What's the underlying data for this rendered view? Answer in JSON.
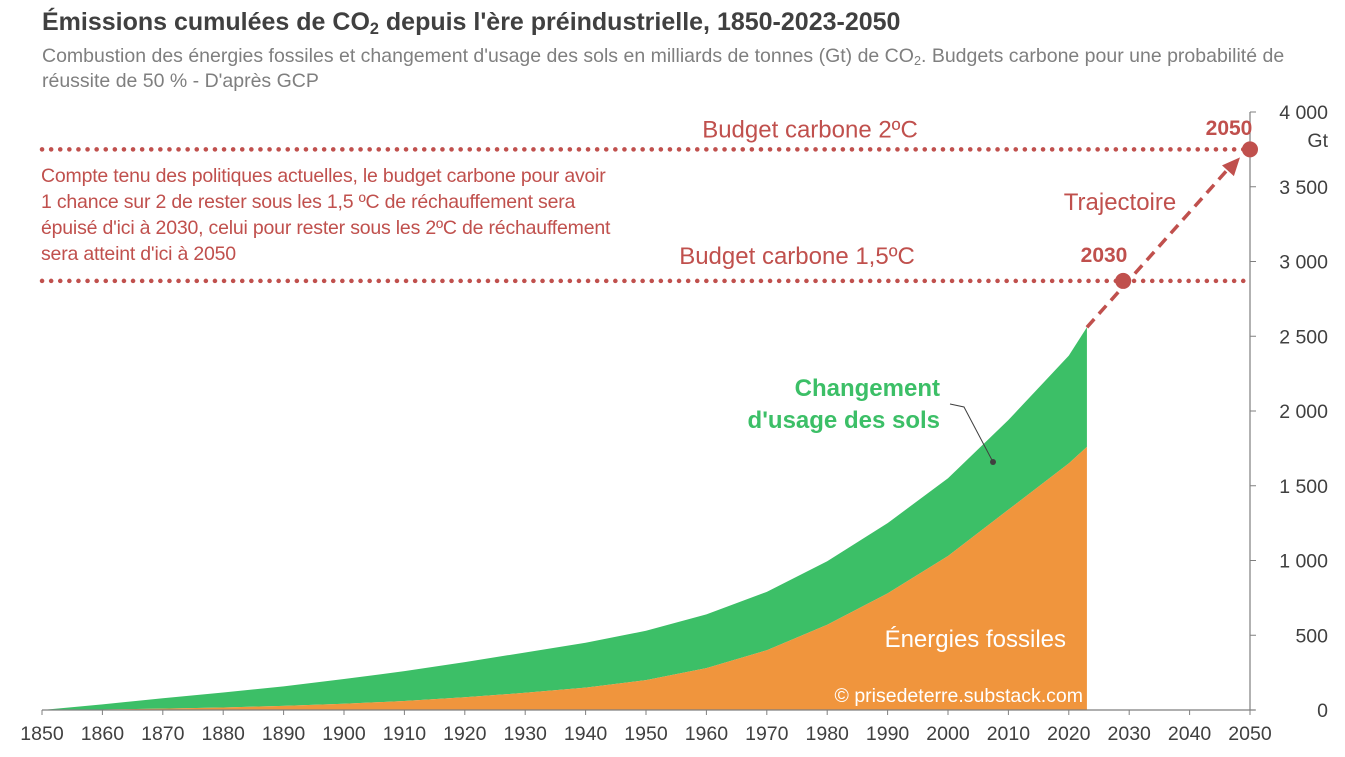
{
  "title_main": "Émissions cumulées de CO",
  "title_sub": "2",
  "title_rest": " depuis l'ère préindustrielle, 1850-2023-2050",
  "subtitle_main": "Combustion des énergies fossiles et changement d'usage des sols en milliards de tonnes (Gt) de CO",
  "subtitle_sub": "2",
  "subtitle_rest": ". Budgets carbone pour une probabilité de réussite de 50 % - D'après GCP",
  "colors": {
    "fossil": "#f0953d",
    "land": "#3cbf67",
    "budget": "#c0504d",
    "axis": "#7f7f7f",
    "text": "#404040"
  },
  "chart_data": {
    "type": "area",
    "stacked": true,
    "x": [
      1850,
      1860,
      1870,
      1880,
      1890,
      1900,
      1910,
      1920,
      1930,
      1940,
      1950,
      1960,
      1970,
      1980,
      1990,
      2000,
      2010,
      2020,
      2023
    ],
    "series": [
      {
        "name": "Énergies fossiles",
        "values": [
          0,
          3,
          9,
          17,
          28,
          42,
          60,
          85,
          115,
          150,
          200,
          280,
          400,
          570,
          780,
          1030,
          1340,
          1650,
          1760
        ]
      },
      {
        "name": "Changement d'usage des sols",
        "values": [
          0,
          35,
          70,
          100,
          130,
          165,
          200,
          235,
          270,
          300,
          330,
          360,
          390,
          425,
          470,
          520,
          600,
          720,
          800
        ]
      }
    ],
    "budget_lines": [
      {
        "label": "Budget carbone 2ºC",
        "value": 3750
      },
      {
        "label": "Budget carbone 1,5ºC",
        "value": 2870
      }
    ],
    "trajectory": {
      "label": "Trajectoire",
      "start": {
        "x": 2023,
        "y": 2560
      },
      "points": [
        {
          "x": 2029,
          "y": 2870,
          "label": "2030"
        },
        {
          "x": 2050,
          "y": 3750,
          "label": "2050"
        }
      ]
    },
    "annotations": {
      "land_label_line1": "Changement",
      "land_label_line2": "d'usage des sols",
      "fossil_label": "Énergies fossiles",
      "credit": "© prisedeterre.substack.com",
      "note": "Compte tenu des politiques actuelles, le budget carbone pour avoir 1 chance sur 2 de rester sous les 1,5 ºC de réchauffement sera épuisé d'ici à 2030, celui pour rester sous les 2ºC de réchauffement sera atteint d'ici à 2050"
    },
    "xlim": [
      1850,
      2050
    ],
    "ylim": [
      0,
      4000
    ],
    "x_ticks": [
      1850,
      1860,
      1870,
      1880,
      1890,
      1900,
      1910,
      1920,
      1930,
      1940,
      1950,
      1960,
      1970,
      1980,
      1990,
      2000,
      2010,
      2020,
      2030,
      2040,
      2050
    ],
    "y_ticks": [
      0,
      500,
      1000,
      1500,
      2000,
      2500,
      3000,
      3500,
      4000
    ],
    "y_tick_labels": [
      "0",
      "500",
      "1 000",
      "1 500",
      "2 000",
      "2 500",
      "3 000",
      "3 500",
      "4 000"
    ],
    "y_unit": "Gt"
  }
}
